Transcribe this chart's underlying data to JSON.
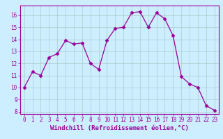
{
  "x": [
    0,
    1,
    2,
    3,
    4,
    5,
    6,
    7,
    8,
    9,
    10,
    11,
    12,
    13,
    14,
    15,
    16,
    17,
    18,
    19,
    20,
    21,
    22,
    23
  ],
  "y": [
    10.0,
    11.3,
    11.0,
    12.5,
    12.8,
    13.9,
    13.6,
    13.7,
    12.0,
    11.5,
    13.9,
    14.9,
    15.0,
    16.2,
    16.3,
    15.0,
    16.2,
    15.7,
    14.3,
    10.9,
    10.3,
    10.0,
    8.5,
    8.1
  ],
  "line_color": "#990099",
  "marker": "D",
  "marker_size": 2.5,
  "bg_color": "#cceeff",
  "grid_color": "#aacccc",
  "xlabel": "Windchill (Refroidissement éolien,°C)",
  "xlabel_color": "#990099",
  "ylim": [
    7.8,
    16.8
  ],
  "xlim": [
    -0.5,
    23.5
  ],
  "yticks": [
    8,
    9,
    10,
    11,
    12,
    13,
    14,
    15,
    16
  ],
  "xticks": [
    0,
    1,
    2,
    3,
    4,
    5,
    6,
    7,
    8,
    9,
    10,
    11,
    12,
    13,
    14,
    15,
    16,
    17,
    18,
    19,
    20,
    21,
    22,
    23
  ],
  "tick_color": "#990099",
  "spine_color": "#777777",
  "tick_label_size": 5.5,
  "xlabel_size": 6.5
}
